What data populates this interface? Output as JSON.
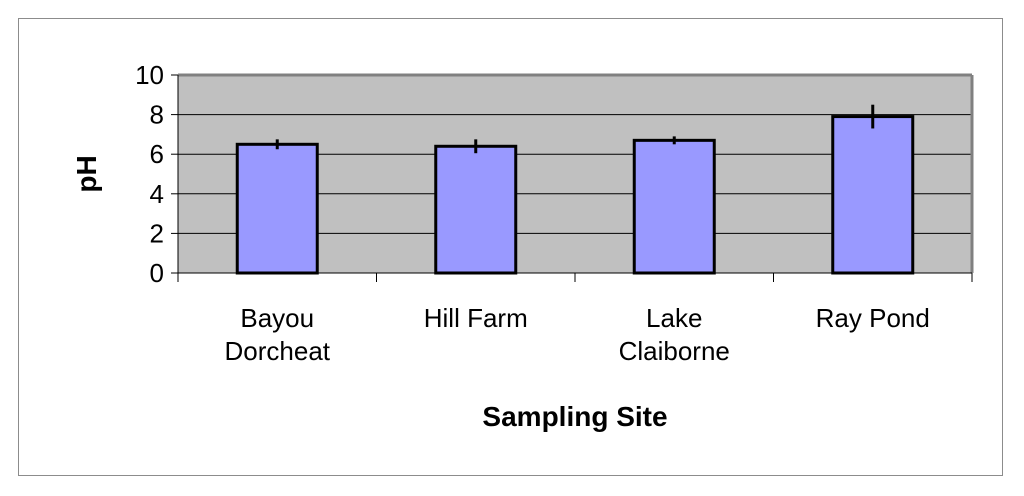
{
  "chart_data": {
    "type": "bar",
    "title": "",
    "xlabel": "Sampling Site",
    "ylabel": "pH",
    "categories": [
      [
        "Bayou",
        "Dorcheat"
      ],
      [
        "Hill Farm"
      ],
      [
        "Lake",
        "Claiborne"
      ],
      [
        "Ray Pond"
      ]
    ],
    "values": [
      6.5,
      6.4,
      6.7,
      7.9
    ],
    "error": [
      0.25,
      0.35,
      0.2,
      0.6
    ],
    "ylim": [
      0,
      10
    ],
    "yticks": [
      "0",
      "2",
      "4",
      "6",
      "8",
      "10"
    ],
    "grid": true,
    "legend": "none",
    "colors": {
      "bar": "#9999ff",
      "plot_background": "#c0c0c0",
      "gridline": "#000000"
    }
  }
}
